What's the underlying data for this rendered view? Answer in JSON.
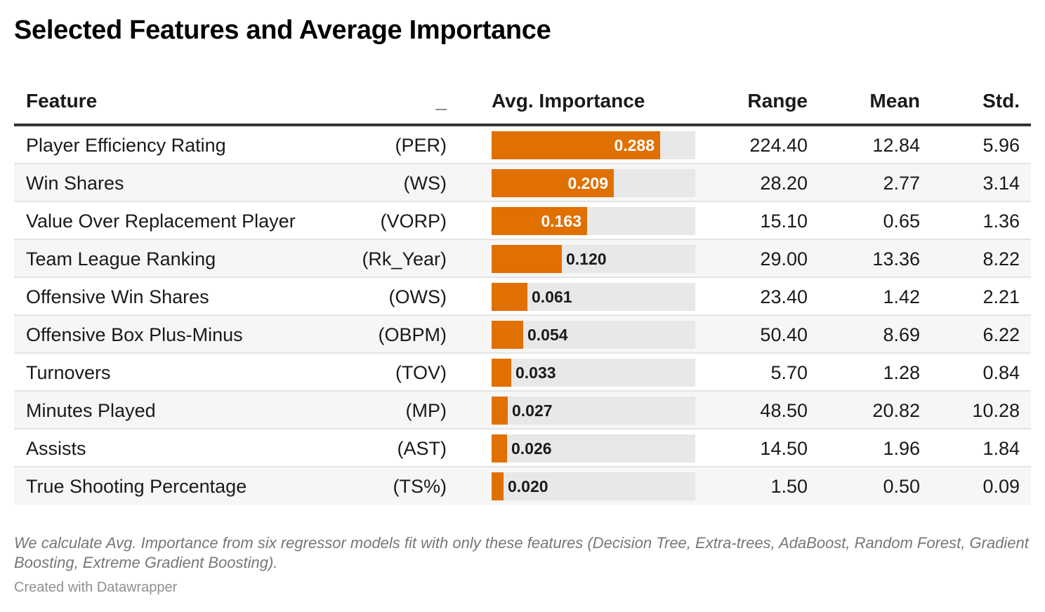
{
  "title": "Selected Features and Average Importance",
  "header": {
    "feature": "Feature",
    "abbr": "_",
    "avg": "Avg. Importance",
    "range": "Range",
    "mean": "Mean",
    "std": "Std."
  },
  "rows": [
    {
      "feature": "Player Efficiency Rating",
      "abbr": "(PER)",
      "importance": "0.288",
      "range": "224.40",
      "mean": "12.84",
      "std": "5.96"
    },
    {
      "feature": "Win Shares",
      "abbr": "(WS)",
      "importance": "0.209",
      "range": "28.20",
      "mean": "2.77",
      "std": "3.14"
    },
    {
      "feature": "Value Over Replacement Player",
      "abbr": "(VORP)",
      "importance": "0.163",
      "range": "15.10",
      "mean": "0.65",
      "std": "1.36"
    },
    {
      "feature": "Team League Ranking",
      "abbr": "(Rk_Year)",
      "importance": "0.120",
      "range": "29.00",
      "mean": "13.36",
      "std": "8.22"
    },
    {
      "feature": "Offensive Win Shares",
      "abbr": "(OWS)",
      "importance": "0.061",
      "range": "23.40",
      "mean": "1.42",
      "std": "2.21"
    },
    {
      "feature": "Offensive Box Plus-Minus",
      "abbr": "(OBPM)",
      "importance": "0.054",
      "range": "50.40",
      "mean": "8.69",
      "std": "6.22"
    },
    {
      "feature": "Turnovers",
      "abbr": "(TOV)",
      "importance": "0.033",
      "range": "5.70",
      "mean": "1.28",
      "std": "0.84"
    },
    {
      "feature": "Minutes Played",
      "abbr": "(MP)",
      "importance": "0.027",
      "range": "48.50",
      "mean": "20.82",
      "std": "10.28"
    },
    {
      "feature": "Assists",
      "abbr": "(AST)",
      "importance": "0.026",
      "range": "14.50",
      "mean": "1.96",
      "std": "1.84"
    },
    {
      "feature": "True Shooting Percentage",
      "abbr": "(TS%)",
      "importance": "0.020",
      "range": "1.50",
      "mean": "0.50",
      "std": "0.09"
    }
  ],
  "chart_data": {
    "type": "bar",
    "categories": [
      "Player Efficiency Rating",
      "Win Shares",
      "Value Over Replacement Player",
      "Team League Ranking",
      "Offensive Win Shares",
      "Offensive Box Plus-Minus",
      "Turnovers",
      "Minutes Played",
      "Assists",
      "True Shooting Percentage"
    ],
    "values": [
      0.288,
      0.209,
      0.163,
      0.12,
      0.061,
      0.054,
      0.033,
      0.027,
      0.026,
      0.02
    ],
    "xlim": [
      0,
      0.348
    ],
    "bar_color": "#e07000",
    "track_color": "#e8e8e8"
  },
  "footnote": "We calculate Avg. Importance from six regressor models fit with only these features (Decision Tree, Extra-trees, AdaBoost, Random Forest, Gradient Boosting, Extreme Gradient Boosting).",
  "credit": "Created with Datawrapper"
}
